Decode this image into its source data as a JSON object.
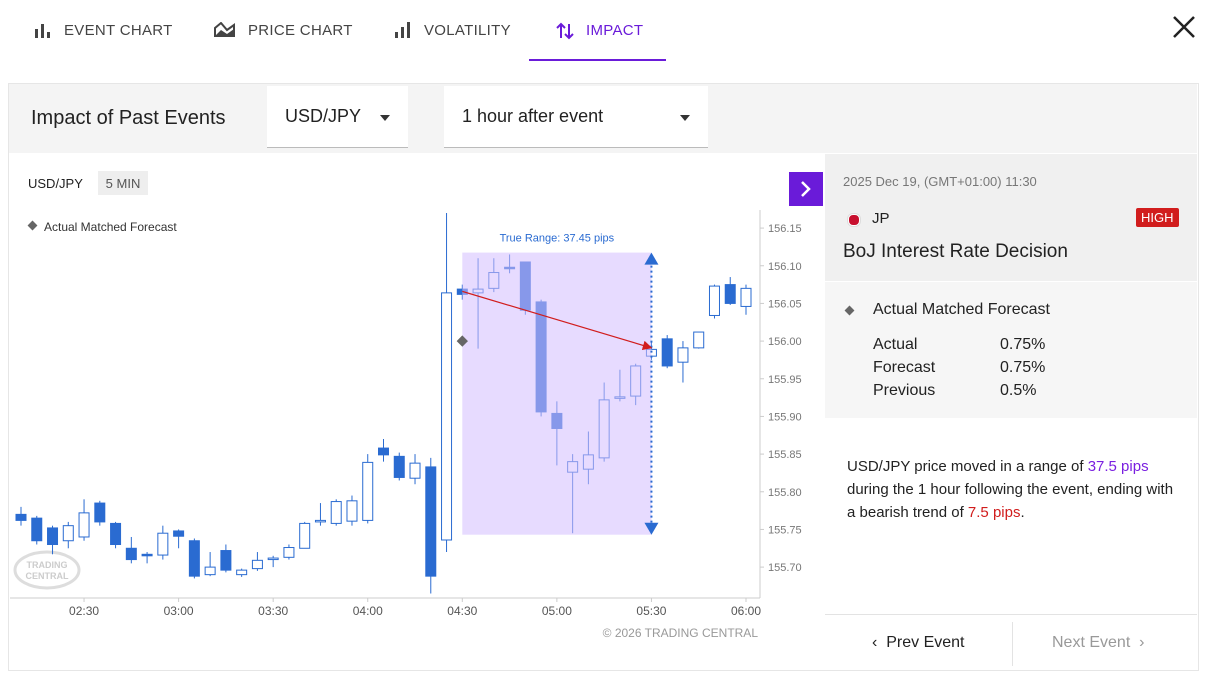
{
  "tabs": [
    "EVENT CHART",
    "PRICE CHART",
    "VOLATILITY",
    "IMPACT"
  ],
  "header": {
    "title": "Impact of Past Events",
    "pair_select": "USD/JPY",
    "window_select": "1 hour after event"
  },
  "chart_data": {
    "type": "candlestick",
    "symbol": "USD/JPY",
    "interval": "5 MIN",
    "legend": "Actual Matched Forecast",
    "color": "#2a6bd1",
    "categories": [
      null,
      null,
      null,
      null,
      "02:30",
      null,
      null,
      null,
      null,
      null,
      "03:00",
      null,
      null,
      null,
      null,
      null,
      "03:30",
      null,
      null,
      null,
      null,
      null,
      "04:00",
      null,
      null,
      null,
      null,
      null,
      "04:30",
      null,
      null,
      null,
      null,
      null,
      "05:00",
      null,
      null,
      null,
      null,
      null,
      "05:30",
      null,
      null,
      null,
      null,
      null,
      "06:00"
    ],
    "open": [
      155.77,
      155.765,
      155.752,
      155.735,
      155.74,
      155.785,
      155.758,
      155.725,
      155.717,
      155.716,
      155.748,
      155.735,
      155.69,
      155.722,
      155.69,
      155.698,
      155.711,
      155.713,
      155.725,
      155.76,
      155.758,
      155.761,
      155.762,
      155.858,
      155.847,
      155.818,
      155.833,
      155.736,
      156.069,
      156.064,
      156.07,
      156.098,
      156.105,
      156.052,
      155.904,
      155.826,
      155.83,
      155.845,
      155.925,
      155.927,
      155.98,
      156.003,
      155.972,
      155.991,
      156.034,
      156.075,
      156.046
    ],
    "high": [
      155.78,
      155.768,
      155.755,
      155.76,
      155.79,
      155.788,
      155.76,
      155.74,
      155.72,
      155.755,
      155.75,
      155.738,
      155.72,
      155.73,
      155.698,
      155.72,
      155.715,
      155.73,
      155.76,
      155.785,
      155.79,
      155.795,
      155.85,
      155.87,
      155.852,
      155.85,
      155.845,
      156.17,
      156.075,
      156.11,
      156.11,
      156.115,
      156.105,
      156.055,
      155.92,
      155.85,
      155.88,
      155.945,
      155.962,
      155.97,
      156.0,
      156.008,
      156.0,
      156.012,
      156.075,
      156.085,
      156.075
    ],
    "low": [
      155.755,
      155.73,
      155.717,
      155.725,
      155.735,
      155.755,
      155.725,
      155.705,
      155.705,
      155.71,
      155.725,
      155.685,
      155.688,
      155.693,
      155.687,
      155.695,
      155.7,
      155.71,
      155.725,
      155.755,
      155.755,
      155.755,
      155.758,
      155.84,
      155.815,
      155.81,
      155.665,
      155.72,
      156.055,
      155.99,
      156.065,
      156.09,
      156.035,
      155.9,
      155.835,
      155.745,
      155.81,
      155.84,
      155.92,
      155.915,
      155.975,
      155.964,
      155.945,
      155.99,
      156.03,
      156.048,
      156.035
    ],
    "close": [
      155.762,
      155.735,
      155.73,
      155.755,
      155.772,
      155.76,
      155.73,
      155.71,
      155.715,
      155.745,
      155.741,
      155.688,
      155.7,
      155.696,
      155.696,
      155.709,
      155.712,
      155.726,
      155.758,
      155.762,
      155.787,
      155.788,
      155.839,
      155.849,
      155.819,
      155.838,
      155.688,
      156.064,
      156.062,
      156.069,
      156.091,
      156.097,
      156.041,
      155.906,
      155.884,
      155.84,
      155.849,
      155.922,
      155.926,
      155.967,
      155.989,
      155.967,
      155.991,
      156.012,
      156.073,
      156.05,
      156.07
    ],
    "ylim": [
      155.659,
      156.174
    ],
    "yticks": [
      156.15,
      {
        "value": 156.1,
        "label": "156.10"
      },
      156.05,
      {
        "value": 156.0,
        "label": "156.00"
      },
      155.95,
      {
        "value": 155.9,
        "label": "155.90"
      },
      155.85,
      {
        "value": 155.8,
        "label": "155.80"
      },
      155.75,
      {
        "value": 155.7,
        "label": "155.70"
      }
    ],
    "range": {
      "label": "True Range: 37.45 pips",
      "from": "04:30",
      "to": "05:30",
      "high": 156.1175,
      "low": 155.743
    },
    "trend": {
      "start": 156.066,
      "end": 155.991
    },
    "actual_marker": {
      "category": "04:30",
      "value": 156.0
    },
    "copyright": "© 2026 TRADING CENTRAL",
    "watermark": [
      "TRADING",
      "CENTRAL"
    ]
  },
  "event": {
    "datetime": "2025 Dec 19, (GMT+01:00) 11:30",
    "country": "JP",
    "impact": "HIGH",
    "name": "BoJ Interest Rate Decision",
    "match_label": "Actual Matched Forecast",
    "rows": [
      [
        "Actual",
        "0.75%"
      ],
      [
        "Forecast",
        "0.75%"
      ],
      [
        "Previous",
        "0.5%"
      ]
    ],
    "summary": [
      "USD/JPY price moved in a range of ",
      "37.5 pips",
      " during the 1 hour following the event, ending with a bearish trend of ",
      "7.5 pips",
      "."
    ]
  },
  "nav": {
    "prev": "Prev Event",
    "next": "Next Event"
  }
}
